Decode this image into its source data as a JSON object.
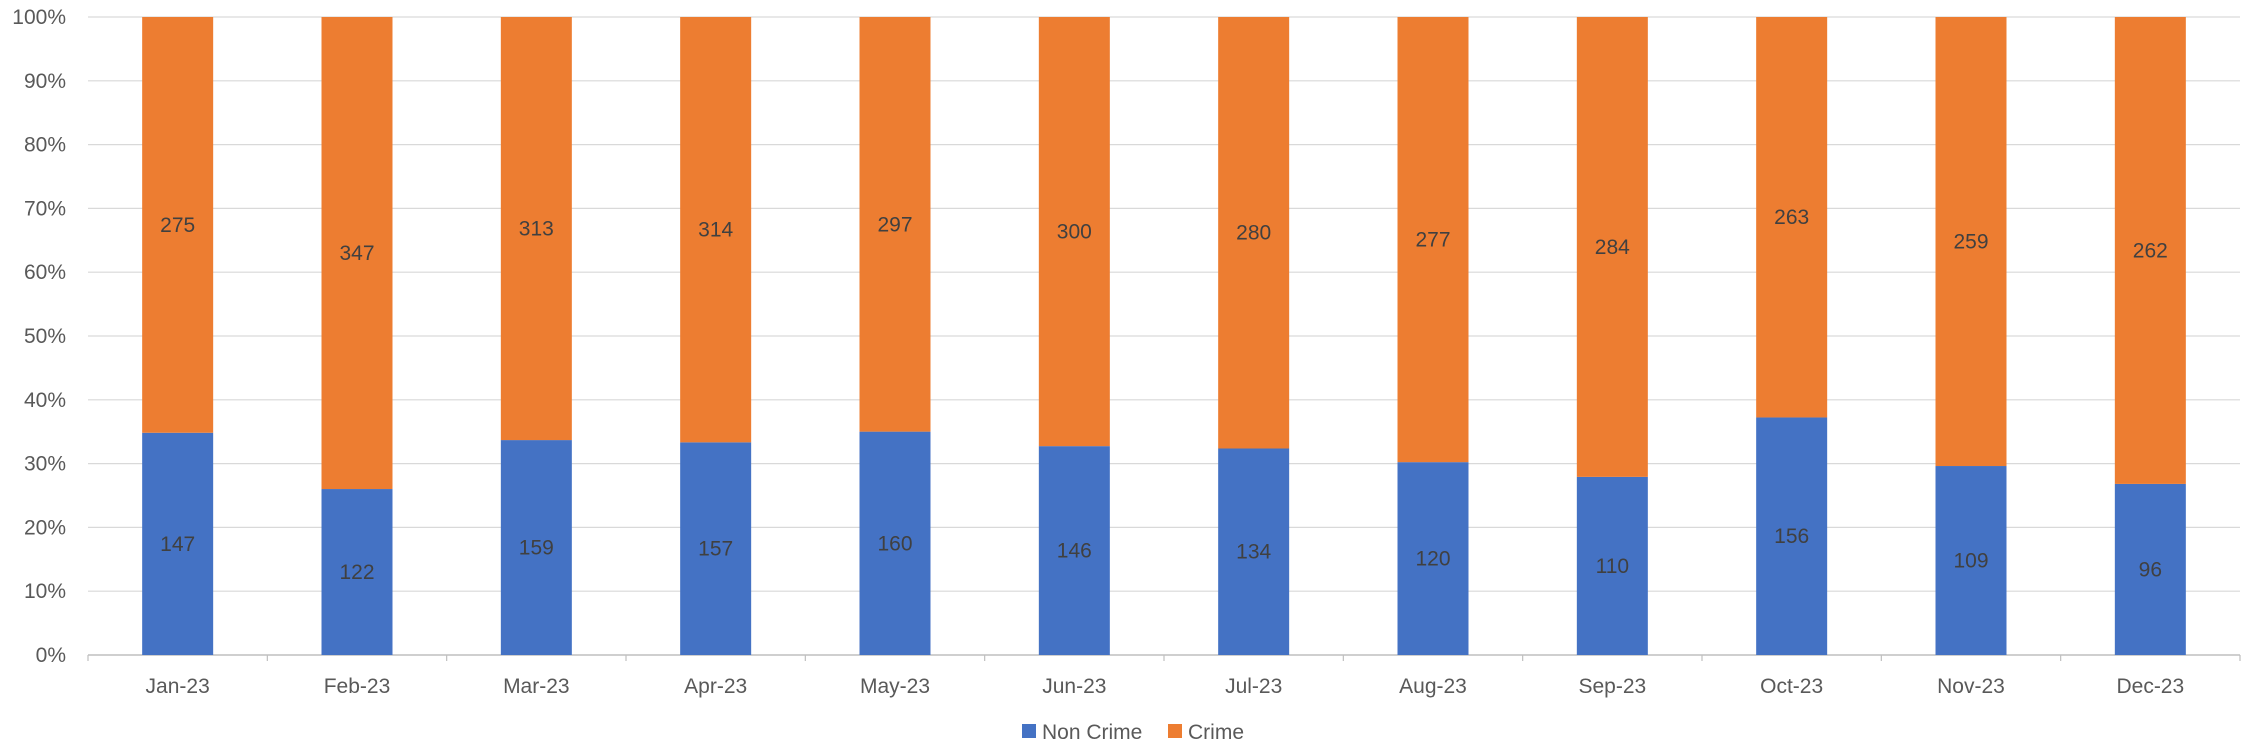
{
  "chart_data": {
    "type": "bar",
    "stacking": "percent",
    "categories": [
      "Jan-23",
      "Feb-23",
      "Mar-23",
      "Apr-23",
      "May-23",
      "Jun-23",
      "Jul-23",
      "Aug-23",
      "Sep-23",
      "Oct-23",
      "Nov-23",
      "Dec-23"
    ],
    "series": [
      {
        "name": "Non Crime",
        "color": "#4472C4",
        "values": [
          147,
          122,
          159,
          157,
          160,
          146,
          134,
          120,
          110,
          156,
          109,
          96
        ]
      },
      {
        "name": "Crime",
        "color": "#ED7D31",
        "values": [
          275,
          347,
          313,
          314,
          297,
          300,
          280,
          277,
          284,
          263,
          259,
          262
        ]
      }
    ],
    "y_ticks": [
      "0%",
      "10%",
      "20%",
      "30%",
      "40%",
      "50%",
      "60%",
      "70%",
      "80%",
      "90%",
      "100%"
    ],
    "ylim": [
      0,
      100
    ],
    "title": "",
    "xlabel": "",
    "ylabel": "",
    "grid": true,
    "legend_position": "bottom",
    "gridline_color": "#D9D9D9",
    "axis_line_color": "#BFBFBF"
  }
}
